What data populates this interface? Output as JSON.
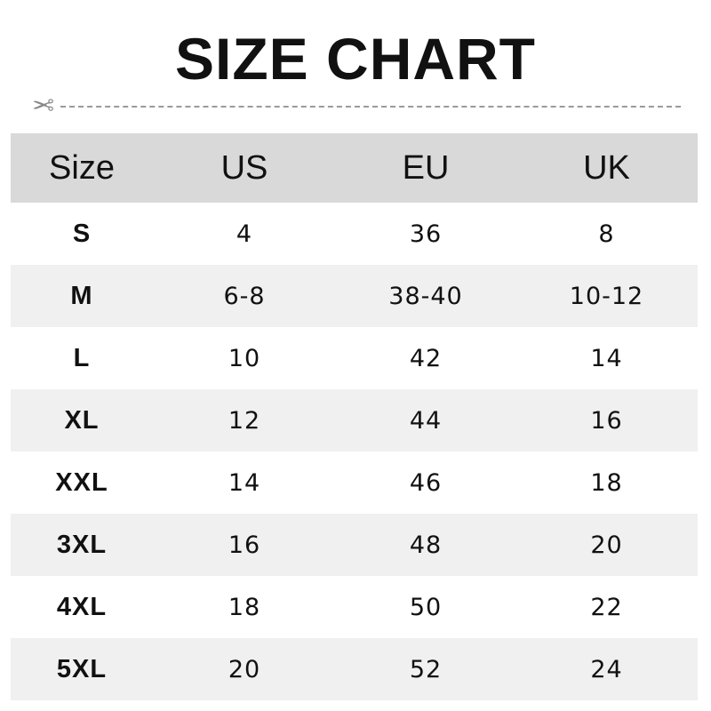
{
  "title": "SIZE CHART",
  "headers": [
    "Size",
    "US",
    "EU",
    "UK"
  ],
  "rows": [
    [
      "S",
      "4",
      "36",
      "8"
    ],
    [
      "M",
      "6-8",
      "38-40",
      "10-12"
    ],
    [
      "L",
      "10",
      "42",
      "14"
    ],
    [
      "XL",
      "12",
      "44",
      "16"
    ],
    [
      "XXL",
      "14",
      "46",
      "18"
    ],
    [
      "3XL",
      "16",
      "48",
      "20"
    ],
    [
      "4XL",
      "18",
      "50",
      "22"
    ],
    [
      "5XL",
      "20",
      "52",
      "24"
    ]
  ],
  "colors": {
    "header_bg": "#d9d9d9",
    "alt_row_bg": "#f0f0f0"
  },
  "icons": {
    "cut_marker": "scissors-icon"
  }
}
